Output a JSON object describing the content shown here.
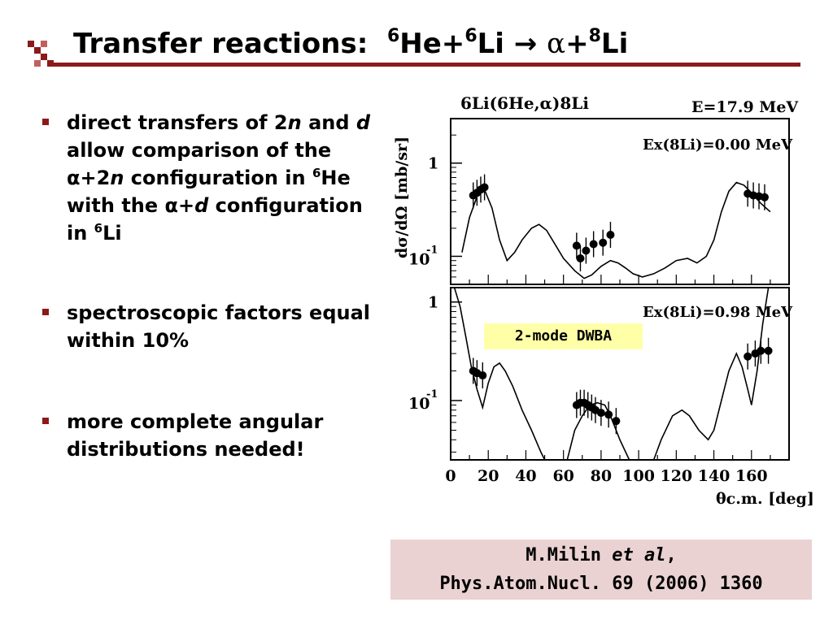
{
  "slide": {
    "title": {
      "prefix": "Transfer reactions:",
      "mass_a": "6",
      "nucleus_a": "He+",
      "mass_b": "6",
      "nucleus_b": "Li",
      "arrow": "→",
      "alpha": "α",
      "plus": "+",
      "mass_c": "8",
      "nucleus_c": "Li"
    },
    "accent_color": "#8b1a1a",
    "bullets": [
      {
        "t1": "direct transfers of 2",
        "t2": "n",
        "t3": " and ",
        "t4": "d",
        "t5": " allow comparison of the ",
        "t6": "α",
        "t7": "+2",
        "t8": "n",
        "t9": " configuration in ",
        "t10": "6",
        "t11": "He with the ",
        "t12": "α",
        "t13": "+",
        "t14": "d",
        "t15": " configuration in ",
        "t16": "6",
        "t17": "Li"
      },
      {
        "text": "spectroscopic factors equal within 10%"
      },
      {
        "text": "more complete angular distributions needed!"
      }
    ],
    "dwba_label": "2-mode DWBA",
    "dwba_color": "#ffffa8",
    "reference": {
      "author": "M.Milin ",
      "etal": "et al",
      "comma": ",",
      "journal": "Phys.Atom.Nucl. 69 (2006) 1360",
      "bg": "#ead2d2"
    }
  },
  "chart_data": [
    {
      "type": "scatter",
      "panel": "top",
      "title": "6Li(6He,α)8Li",
      "energy_label": "E=17.9 MeV",
      "state_label": "Ex(8Li)=0.00 MeV",
      "ylabel": "dσ/dΩ [mb/sr]",
      "y_scale": "log",
      "y_ticks": [
        "1",
        "10-1"
      ],
      "xlim": [
        0,
        180
      ],
      "ylim": [
        0.05,
        3
      ],
      "series": [
        {
          "points": [
            [
              12,
              0.45
            ],
            [
              14,
              0.48
            ],
            [
              16,
              0.52
            ],
            [
              18,
              0.55
            ],
            [
              67,
              0.13
            ],
            [
              69,
              0.095
            ],
            [
              72,
              0.115
            ],
            [
              76,
              0.135
            ],
            [
              81,
              0.14
            ],
            [
              85,
              0.17
            ],
            [
              158,
              0.47
            ],
            [
              161,
              0.45
            ],
            [
              164,
              0.44
            ],
            [
              167,
              0.43
            ]
          ]
        },
        {
          "points": [
            [
              6,
              0.11
            ],
            [
              10,
              0.26
            ],
            [
              15,
              0.5
            ],
            [
              18,
              0.52
            ],
            [
              22,
              0.33
            ],
            [
              26,
              0.15
            ],
            [
              30,
              0.09
            ],
            [
              34,
              0.11
            ],
            [
              38,
              0.15
            ],
            [
              43,
              0.2
            ],
            [
              47,
              0.22
            ],
            [
              51,
              0.19
            ],
            [
              55,
              0.14
            ],
            [
              60,
              0.095
            ],
            [
              66,
              0.07
            ],
            [
              71,
              0.058
            ],
            [
              75,
              0.063
            ],
            [
              80,
              0.078
            ],
            [
              85,
              0.09
            ],
            [
              89,
              0.085
            ],
            [
              93,
              0.075
            ],
            [
              97,
              0.065
            ],
            [
              102,
              0.06
            ],
            [
              108,
              0.065
            ],
            [
              114,
              0.075
            ],
            [
              120,
              0.09
            ],
            [
              126,
              0.095
            ],
            [
              131,
              0.085
            ],
            [
              136,
              0.1
            ],
            [
              140,
              0.15
            ],
            [
              144,
              0.3
            ],
            [
              148,
              0.5
            ],
            [
              152,
              0.62
            ],
            [
              156,
              0.58
            ],
            [
              160,
              0.48
            ],
            [
              165,
              0.37
            ],
            [
              170,
              0.3
            ]
          ]
        }
      ]
    },
    {
      "type": "scatter",
      "panel": "bottom",
      "state_label": "Ex(8Li)=0.98 MeV",
      "ylabel": "dσ/dΩ [mb/sr]",
      "xlabel": "θc.m. [deg]",
      "y_scale": "log",
      "y_ticks": [
        "1",
        "10-1"
      ],
      "x_ticks": [
        "0",
        "20",
        "40",
        "60",
        "80",
        "100",
        "120",
        "140",
        "160"
      ],
      "xlim": [
        0,
        180
      ],
      "ylim": [
        0.025,
        1.4
      ],
      "series": [
        {
          "points": [
            [
              12,
              0.2
            ],
            [
              14,
              0.19
            ],
            [
              17,
              0.18
            ],
            [
              67,
              0.09
            ],
            [
              69,
              0.095
            ],
            [
              71,
              0.095
            ],
            [
              73,
              0.09
            ],
            [
              75,
              0.085
            ],
            [
              77,
              0.08
            ],
            [
              80,
              0.075
            ],
            [
              84,
              0.072
            ],
            [
              88,
              0.062
            ],
            [
              158,
              0.28
            ],
            [
              162,
              0.3
            ],
            [
              165,
              0.32
            ],
            [
              169,
              0.32
            ]
          ]
        },
        {
          "points": [
            [
              2,
              1.4
            ],
            [
              5,
              0.9
            ],
            [
              8,
              0.45
            ],
            [
              11,
              0.22
            ],
            [
              14,
              0.13
            ],
            [
              17,
              0.085
            ],
            [
              20,
              0.15
            ],
            [
              23,
              0.22
            ],
            [
              26,
              0.24
            ],
            [
              29,
              0.2
            ],
            [
              33,
              0.14
            ],
            [
              38,
              0.08
            ],
            [
              43,
              0.05
            ],
            [
              48,
              0.03
            ],
            [
              50,
              0.025
            ],
            [
              62,
              0.025
            ],
            [
              66,
              0.05
            ],
            [
              70,
              0.07
            ],
            [
              74,
              0.09
            ],
            [
              78,
              0.095
            ],
            [
              82,
              0.09
            ],
            [
              85,
              0.07
            ],
            [
              90,
              0.04
            ],
            [
              95,
              0.025
            ],
            [
              108,
              0.025
            ],
            [
              112,
              0.04
            ],
            [
              118,
              0.07
            ],
            [
              123,
              0.08
            ],
            [
              127,
              0.07
            ],
            [
              132,
              0.05
            ],
            [
              137,
              0.04
            ],
            [
              140,
              0.05
            ],
            [
              144,
              0.1
            ],
            [
              148,
              0.2
            ],
            [
              152,
              0.3
            ],
            [
              155,
              0.22
            ],
            [
              158,
              0.13
            ],
            [
              160,
              0.09
            ],
            [
              163,
              0.2
            ],
            [
              166,
              0.6
            ],
            [
              169,
              1.4
            ]
          ]
        }
      ]
    }
  ]
}
